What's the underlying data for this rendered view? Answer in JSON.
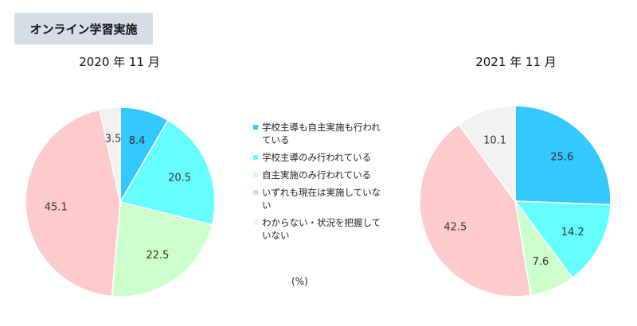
{
  "header": {
    "title": "オンライン学習実施"
  },
  "unit_label": "(%)",
  "legend": [
    {
      "label": "学校主導も自主実施も行われている",
      "color": "#33c8fe"
    },
    {
      "label": "学校主導のみ行われている",
      "color": "#66fdff"
    },
    {
      "label": "自主実施のみ行われている",
      "color": "#cdffcc"
    },
    {
      "label": "いずれも現在は実施していない",
      "color": "#fecbcc"
    },
    {
      "label": "わからない・状況を把握していない",
      "color": "#f1f1f4"
    }
  ],
  "chart_data": [
    {
      "type": "pie",
      "title": "2020 年 11 月",
      "categories": [
        "学校主導も自主実施も行われている",
        "学校主導のみ行われている",
        "自主実施のみ行われている",
        "いずれも現在は実施していない",
        "わからない・状況を把握していない"
      ],
      "values": [
        8.4,
        20.5,
        22.5,
        45.1,
        3.5
      ],
      "colors": [
        "#33c8fe",
        "#66fdff",
        "#cdffcc",
        "#fecbcc",
        "#f1f1f4"
      ]
    },
    {
      "type": "pie",
      "title": "2021 年 11 月",
      "categories": [
        "学校主導も自主実施も行われている",
        "学校主導のみ行われている",
        "自主実施のみ行われている",
        "いずれも現在は実施していない",
        "わからない・状況を把握していない"
      ],
      "values": [
        25.6,
        14.2,
        7.6,
        42.5,
        10.1
      ],
      "colors": [
        "#33c8fe",
        "#66fdff",
        "#cdffcc",
        "#fecbcc",
        "#f1f1f4"
      ]
    }
  ]
}
